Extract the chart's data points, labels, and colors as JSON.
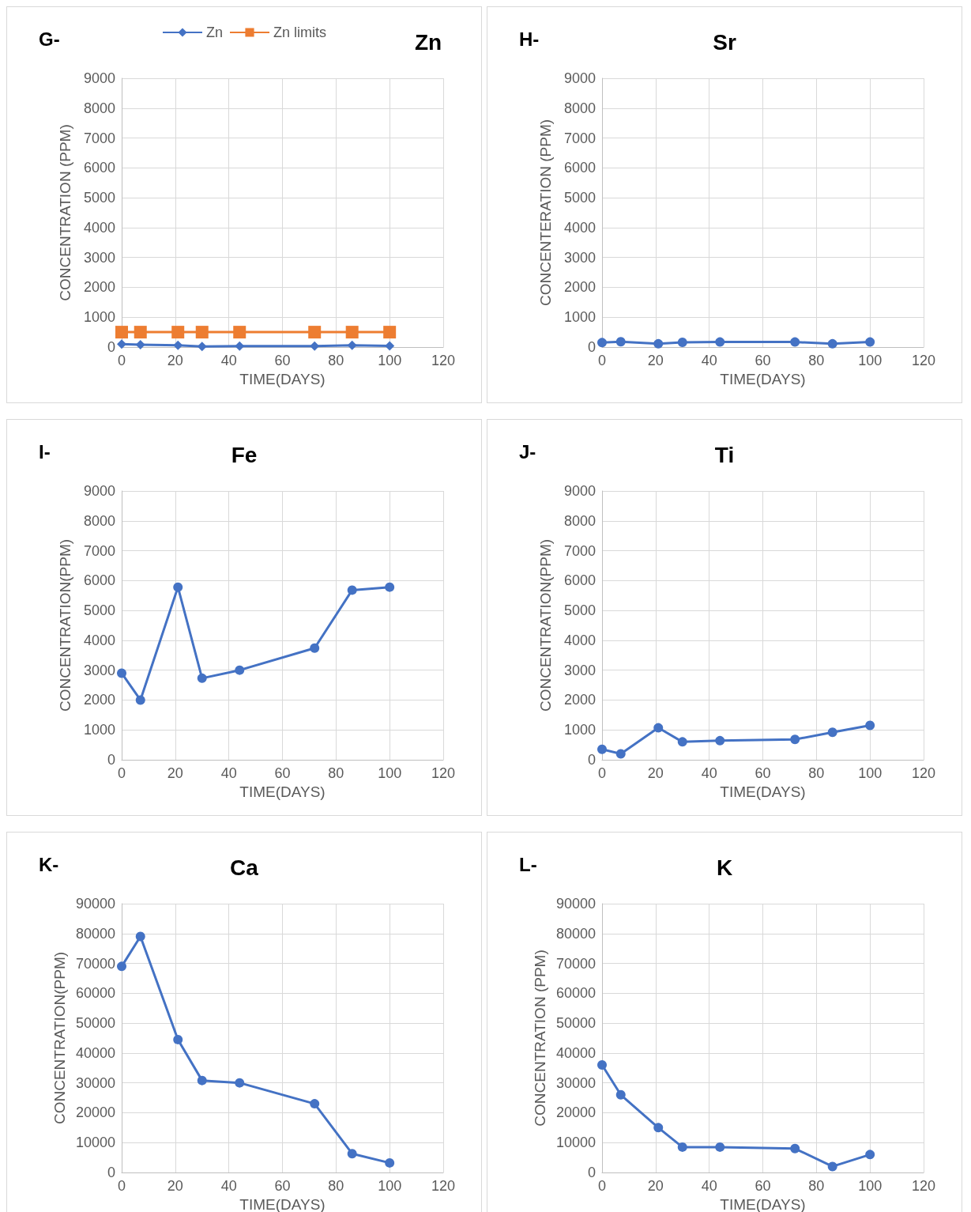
{
  "chart_data": [
    {
      "type": "line",
      "title": "Zn",
      "annotations": [
        "G-"
      ],
      "xlabel": "TIME(DAYS)",
      "ylabel": "CONCENTRATION (PPM)",
      "legend": "top",
      "grid": true,
      "xlim": [
        0,
        120
      ],
      "xticks": [
        0,
        20,
        40,
        60,
        80,
        100,
        120
      ],
      "ylim": [
        0,
        9000
      ],
      "yticks": [
        0,
        1000,
        2000,
        3000,
        4000,
        5000,
        6000,
        7000,
        8000,
        9000
      ],
      "series": [
        {
          "name": "Zn",
          "color": "#4472c4",
          "marker": "diamond",
          "x": [
            0,
            7,
            21,
            30,
            44,
            72,
            86,
            100
          ],
          "values": [
            100,
            80,
            60,
            20,
            30,
            30,
            60,
            40
          ]
        },
        {
          "name": "Zn limits",
          "color": "#ed7d31",
          "marker": "square",
          "x": [
            0,
            7,
            21,
            30,
            44,
            72,
            86,
            100
          ],
          "values": [
            500,
            500,
            500,
            500,
            500,
            500,
            500,
            500
          ]
        }
      ]
    },
    {
      "type": "line",
      "title": "Sr",
      "annotations": [
        "H-"
      ],
      "xlabel": "TIME(DAYS)",
      "ylabel": "CONCENTERATION (PPM)",
      "grid": true,
      "marker": "circle",
      "xlim": [
        0,
        120
      ],
      "xticks": [
        0,
        20,
        40,
        60,
        80,
        100,
        120
      ],
      "ylim": [
        0,
        9000
      ],
      "yticks": [
        0,
        1000,
        2000,
        3000,
        4000,
        5000,
        6000,
        7000,
        8000,
        9000
      ],
      "series": [
        {
          "color": "#4472c4",
          "x": [
            0,
            7,
            21,
            30,
            44,
            72,
            86,
            100
          ],
          "values": [
            150,
            180,
            110,
            160,
            170,
            170,
            110,
            170
          ]
        }
      ]
    },
    {
      "type": "line",
      "title": "Fe",
      "annotations": [
        "I-"
      ],
      "xlabel": "TIME(DAYS)",
      "ylabel": "CONCENTRATION(PPM)",
      "grid": true,
      "marker": "circle",
      "xlim": [
        0,
        120
      ],
      "xticks": [
        0,
        20,
        40,
        60,
        80,
        100,
        120
      ],
      "ylim": [
        0,
        9000
      ],
      "yticks": [
        0,
        1000,
        2000,
        3000,
        4000,
        5000,
        6000,
        7000,
        8000,
        9000
      ],
      "series": [
        {
          "color": "#4472c4",
          "x": [
            0,
            7,
            21,
            30,
            44,
            72,
            86,
            100
          ],
          "values": [
            2900,
            2000,
            5780,
            2730,
            3000,
            3740,
            5680,
            5780
          ]
        }
      ]
    },
    {
      "type": "line",
      "title": "Ti",
      "annotations": [
        "J-"
      ],
      "xlabel": "TIME(DAYS)",
      "ylabel": "CONCENTRATION(PPM)",
      "grid": true,
      "marker": "circle",
      "xlim": [
        0,
        120
      ],
      "xticks": [
        0,
        20,
        40,
        60,
        80,
        100,
        120
      ],
      "ylim": [
        0,
        9000
      ],
      "yticks": [
        0,
        1000,
        2000,
        3000,
        4000,
        5000,
        6000,
        7000,
        8000,
        9000
      ],
      "series": [
        {
          "color": "#4472c4",
          "x": [
            0,
            7,
            21,
            30,
            44,
            72,
            86,
            100
          ],
          "values": [
            350,
            200,
            1070,
            600,
            640,
            680,
            920,
            1150
          ]
        }
      ]
    },
    {
      "type": "line",
      "title": "Ca",
      "annotations": [
        "K-"
      ],
      "xlabel": "TIME(DAYS)",
      "ylabel": "CONCENTRATION(PPM)",
      "grid": true,
      "marker": "circle",
      "xlim": [
        0,
        120
      ],
      "xticks": [
        0,
        20,
        40,
        60,
        80,
        100,
        120
      ],
      "ylim": [
        0,
        90000
      ],
      "yticks": [
        0,
        10000,
        20000,
        30000,
        40000,
        50000,
        60000,
        70000,
        80000,
        90000
      ],
      "series": [
        {
          "color": "#4472c4",
          "x": [
            0,
            7,
            21,
            30,
            44,
            72,
            86,
            100
          ],
          "values": [
            69000,
            79000,
            44500,
            30800,
            30000,
            23000,
            6300,
            3200
          ]
        }
      ]
    },
    {
      "type": "line",
      "title": "K",
      "annotations": [
        "L-"
      ],
      "xlabel": "TIME(DAYS)",
      "ylabel": "CONCENTRATION (PPM)",
      "grid": true,
      "marker": "circle",
      "xlim": [
        0,
        120
      ],
      "xticks": [
        0,
        20,
        40,
        60,
        80,
        100,
        120
      ],
      "ylim": [
        0,
        90000
      ],
      "yticks": [
        0,
        10000,
        20000,
        30000,
        40000,
        50000,
        60000,
        70000,
        80000,
        90000
      ],
      "series": [
        {
          "color": "#4472c4",
          "x": [
            0,
            7,
            21,
            30,
            44,
            72,
            86,
            100
          ],
          "values": [
            36000,
            26000,
            15000,
            8500,
            8500,
            8000,
            2000,
            6000
          ]
        }
      ]
    }
  ]
}
